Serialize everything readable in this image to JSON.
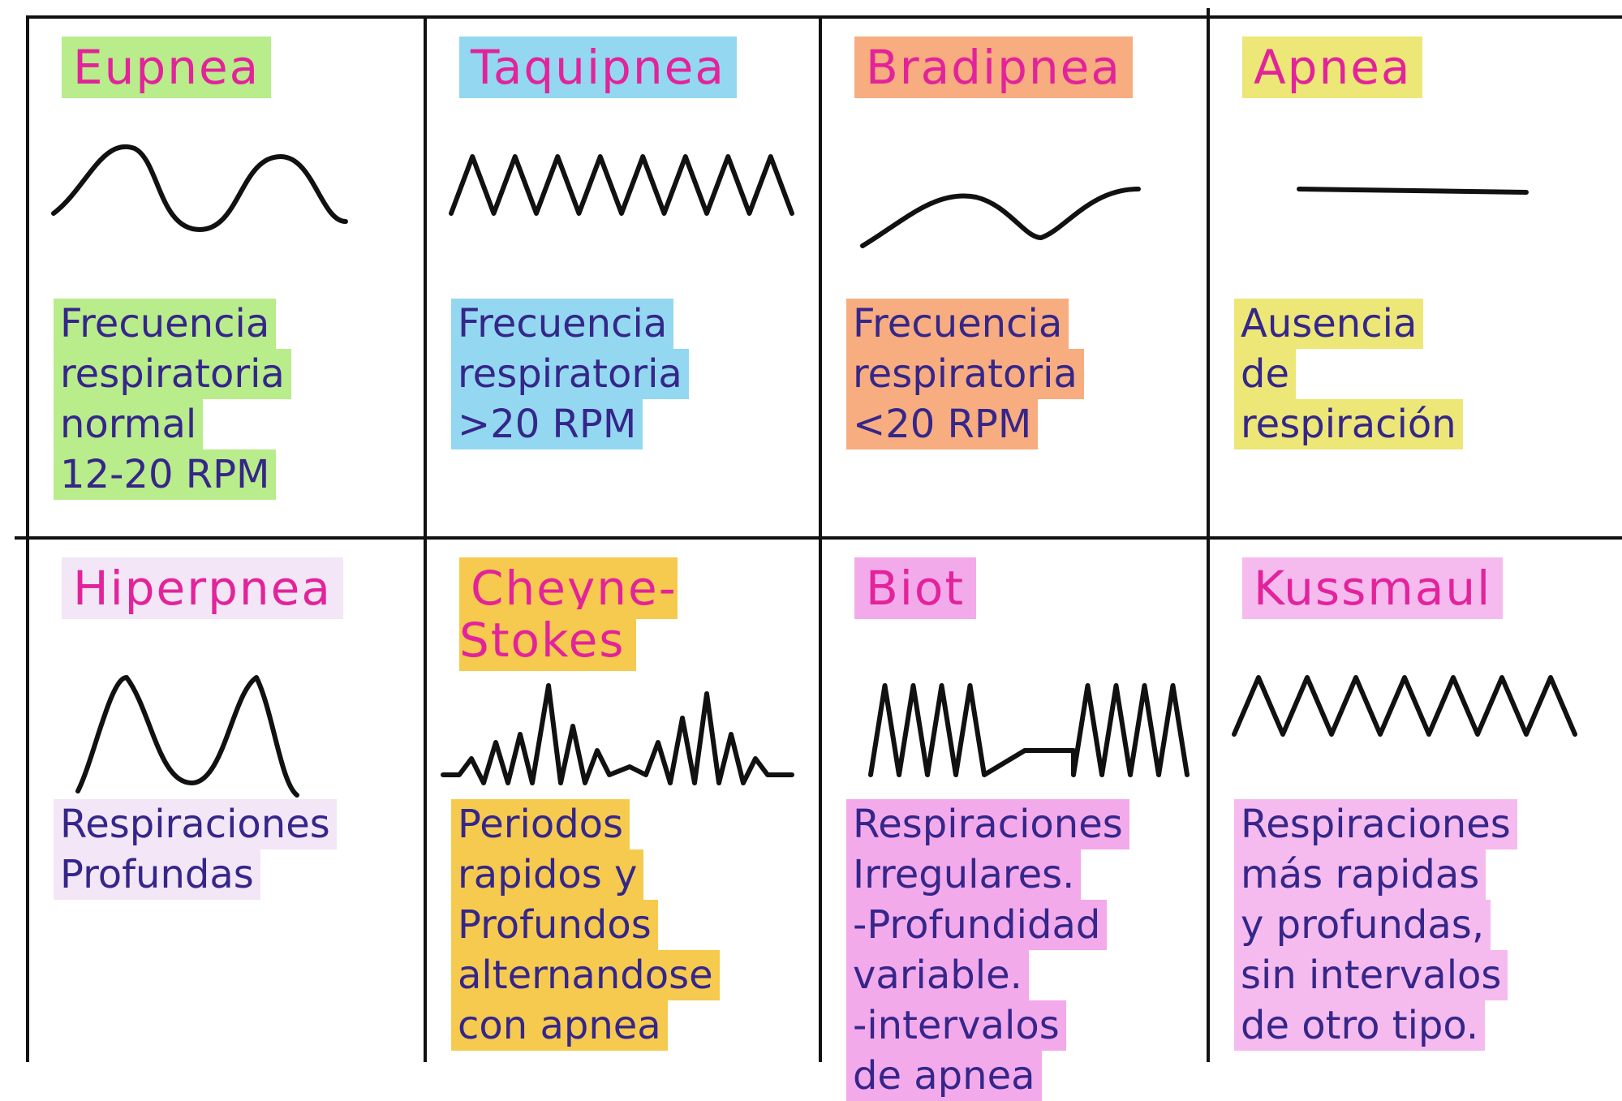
{
  "table": {
    "cells": [
      {
        "title": "Eupnea",
        "lines": [
          "Frecuencia",
          "respiratoria",
          "normal",
          "12-20 RPM"
        ]
      },
      {
        "title": "Taquipnea",
        "lines": [
          "Frecuencia",
          "respiratoria",
          ">20 RPM"
        ]
      },
      {
        "title": "Bradipnea",
        "lines": [
          "Frecuencia",
          "respiratoria",
          "<20 RPM"
        ]
      },
      {
        "title": "Apnea",
        "lines": [
          "Ausencia",
          "de",
          "respiración"
        ]
      },
      {
        "title": "Hiperpnea",
        "lines": [
          "Respiraciones",
          "Profundas"
        ]
      },
      {
        "title": "Cheyne-\nStokes",
        "lines": [
          "Periodos",
          "rapidos y",
          "Profundos",
          "alternandose",
          "con apnea"
        ]
      },
      {
        "title": "Biot",
        "lines": [
          "Respiraciones",
          "Irregulares.",
          "-Profundidad",
          "variable.",
          "-intervalos",
          "de apnea"
        ]
      },
      {
        "title": "Kussmaul",
        "lines": [
          "Respiraciones",
          "más rapidas",
          "y profundas,",
          "sin intervalos",
          "de otro tipo."
        ]
      }
    ]
  }
}
